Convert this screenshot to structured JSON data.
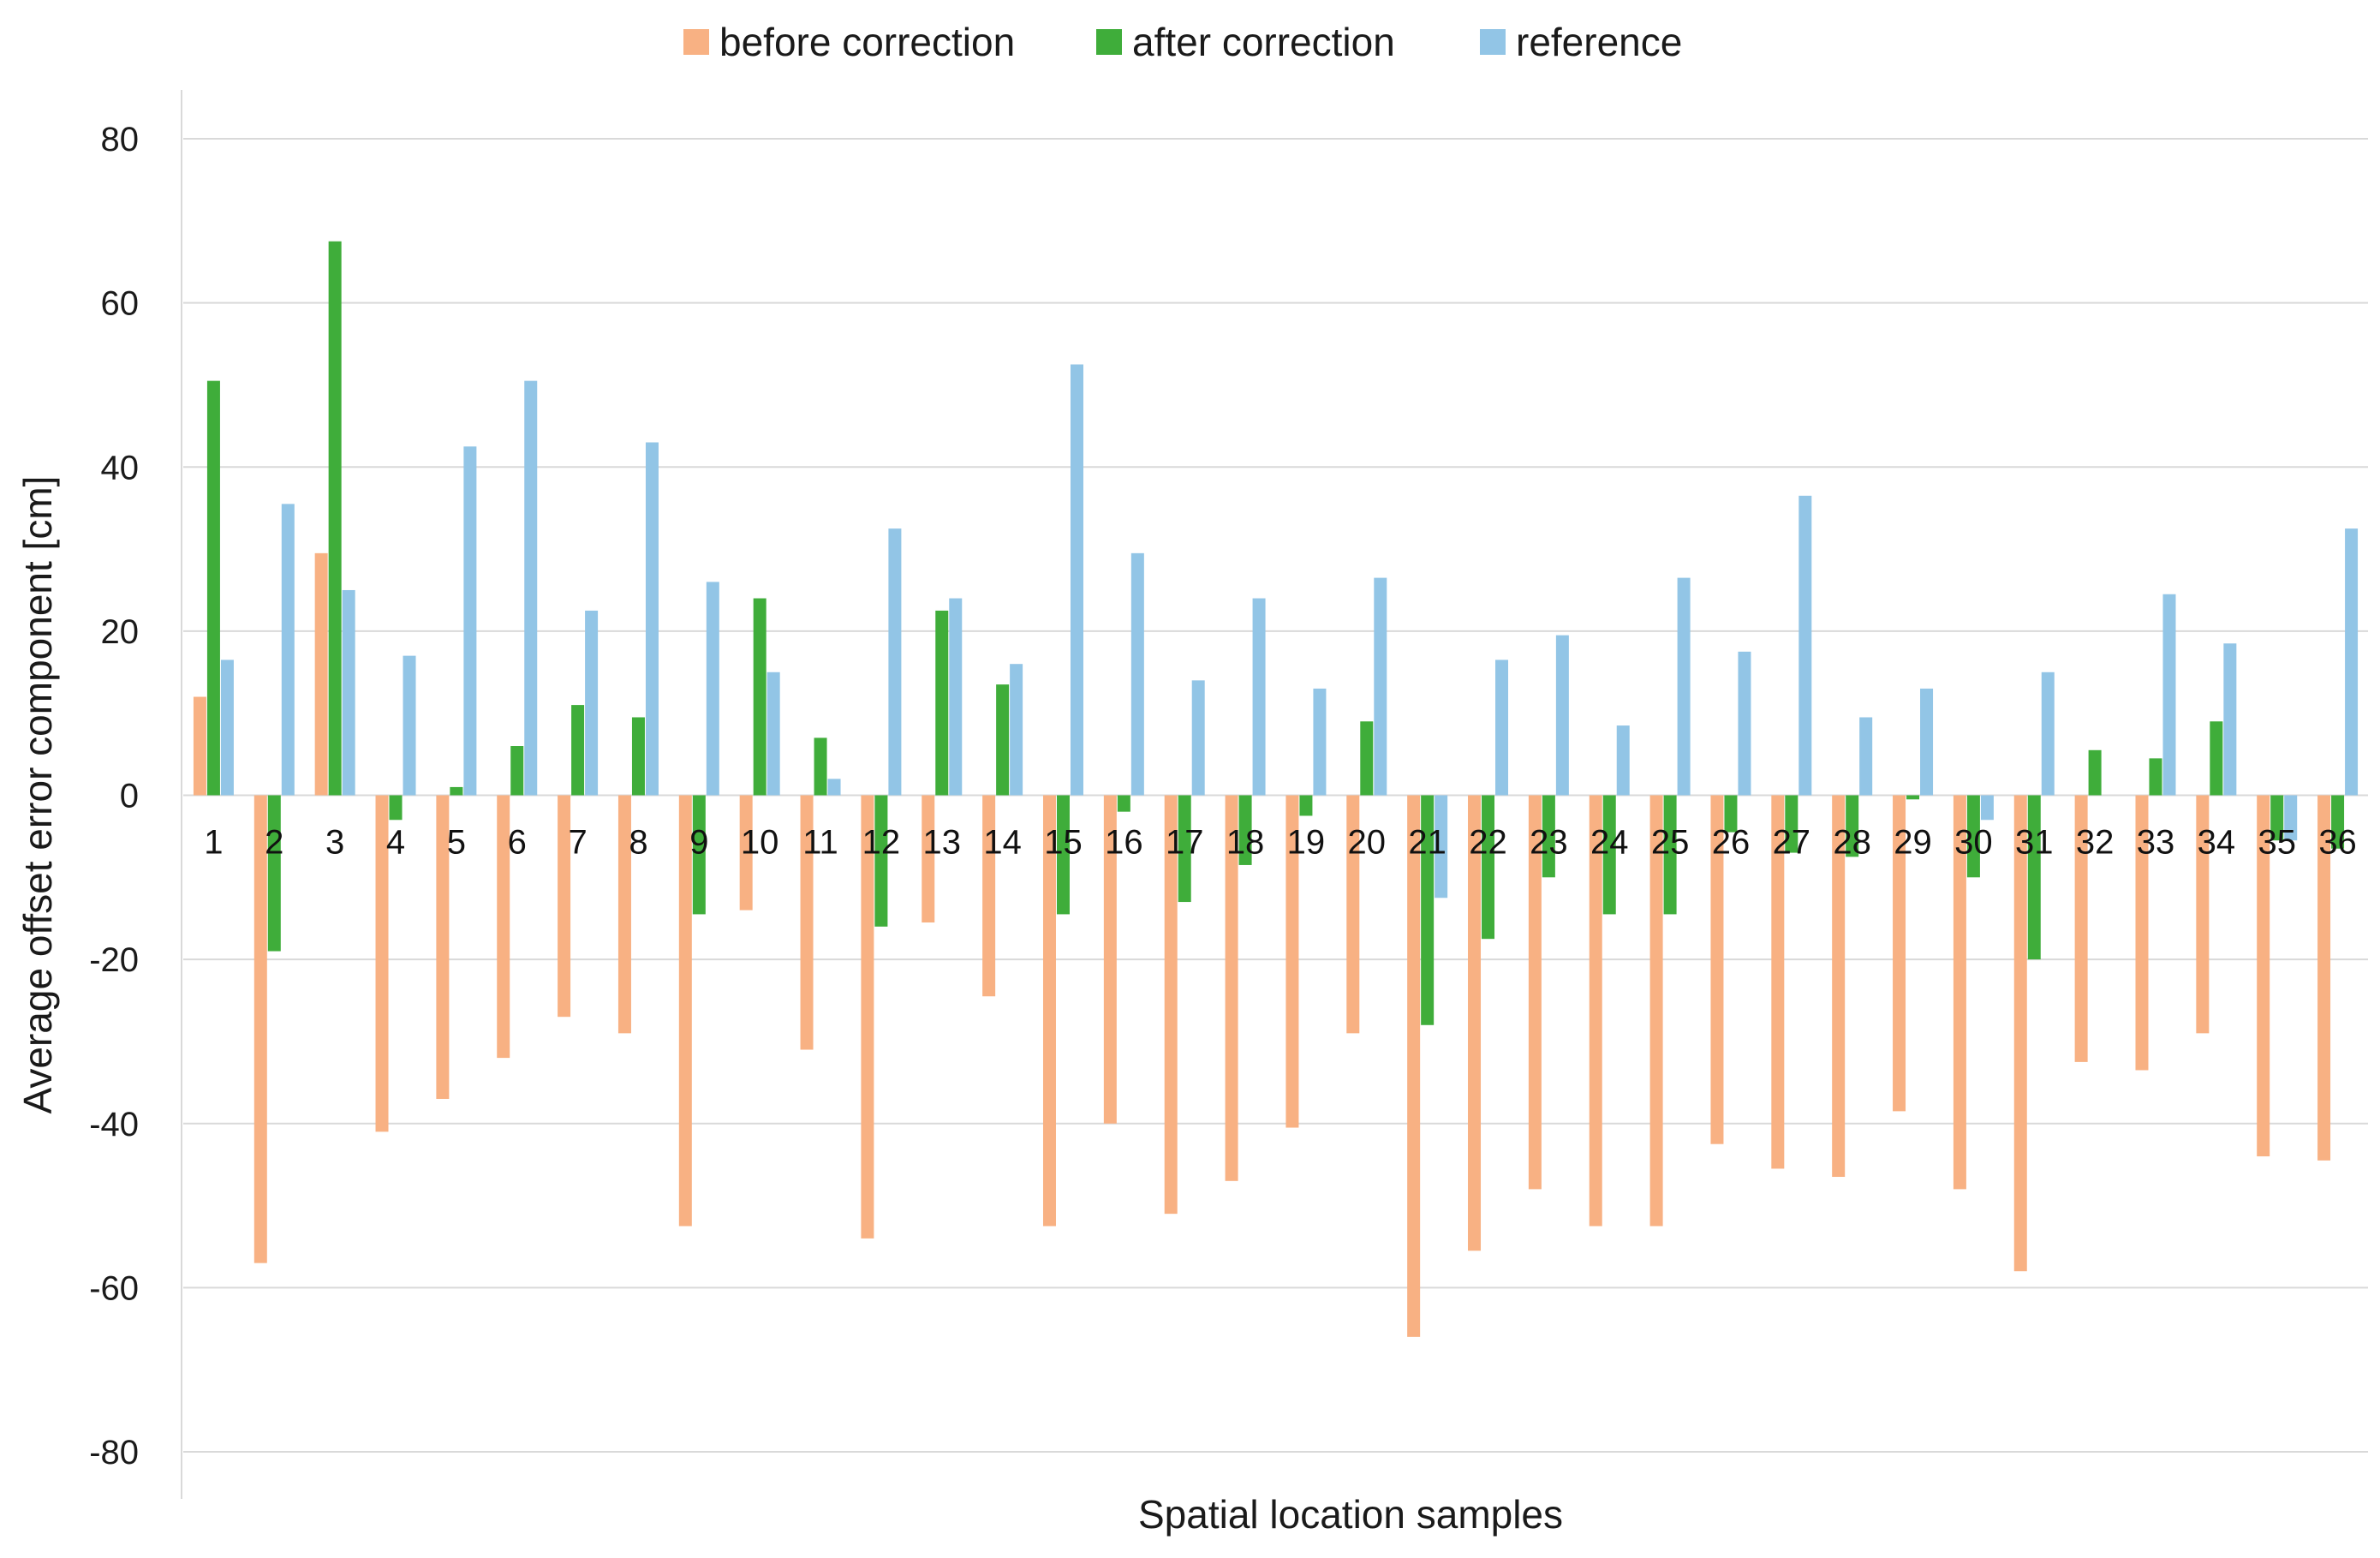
{
  "chart_data": {
    "type": "bar",
    "title": "",
    "xlabel": "Spatial location samples",
    "ylabel": "Average offset error component [cm]",
    "ylim": [
      -80,
      80
    ],
    "yticks": [
      80,
      60,
      40,
      20,
      0,
      -20,
      -40,
      -60,
      -80
    ],
    "grid": true,
    "legend_position": "top-center",
    "categories": [
      "1",
      "2",
      "3",
      "4",
      "5",
      "6",
      "7",
      "8",
      "9",
      "10",
      "11",
      "12",
      "13",
      "14",
      "15",
      "16",
      "17",
      "18",
      "19",
      "20",
      "21",
      "22",
      "23",
      "24",
      "25",
      "26",
      "27",
      "28",
      "29",
      "30",
      "31",
      "32",
      "33",
      "34",
      "35",
      "36"
    ],
    "series": [
      {
        "name": "before correction",
        "color": "#f8b183",
        "values": [
          12,
          -57,
          29.5,
          -41,
          -37,
          -32,
          -27,
          -29,
          -52.5,
          -14,
          -31,
          -54,
          -15.5,
          -24.5,
          -52.5,
          -40,
          -51,
          -47,
          -40.5,
          -29,
          -66,
          -55.5,
          -48,
          -52.5,
          -52.5,
          -42.5,
          -45.5,
          -46.5,
          -38.5,
          -48,
          -58,
          -32.5,
          -33.5,
          -29,
          -44,
          -44.5
        ]
      },
      {
        "name": "after correction",
        "color": "#3fad3a",
        "values": [
          50.5,
          -19,
          67.5,
          -3,
          1,
          6,
          11,
          9.5,
          -14.5,
          24,
          7,
          -16,
          22.5,
          13.5,
          -14.5,
          -2,
          -13,
          -8.5,
          -2.5,
          9,
          -28,
          -17.5,
          -10,
          -14.5,
          -14.5,
          -4.5,
          -7,
          -7.5,
          -0.5,
          -10,
          -20,
          5.5,
          4.5,
          9,
          -5.5,
          -6.5
        ]
      },
      {
        "name": "reference",
        "color": "#92c5e6",
        "values": [
          16.5,
          35.5,
          25,
          17,
          42.5,
          50.5,
          22.5,
          43,
          26,
          15,
          2,
          32.5,
          24,
          16,
          52.5,
          29.5,
          14,
          24,
          13,
          26.5,
          -12.5,
          16.5,
          19.5,
          8.5,
          26.5,
          17.5,
          36.5,
          9.5,
          13,
          -3,
          15,
          0,
          24.5,
          18.5,
          -5.5,
          32.5
        ]
      }
    ]
  }
}
